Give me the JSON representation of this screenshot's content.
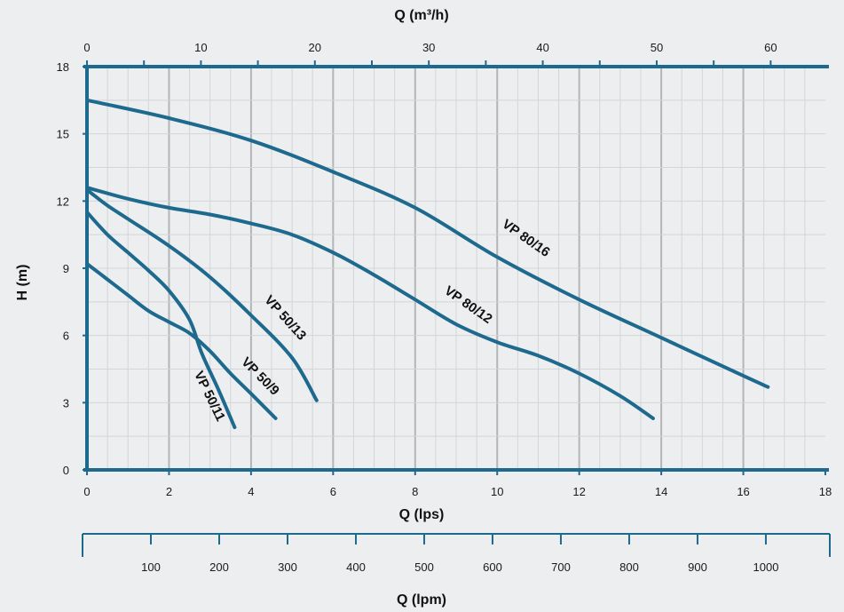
{
  "chart_data": {
    "type": "line",
    "title": "",
    "xlabel": "Q (lps)",
    "ylabel": "H (m)",
    "xlim": [
      0,
      18
    ],
    "ylim": [
      0,
      18
    ],
    "x_ticks": [
      0,
      2,
      4,
      6,
      8,
      10,
      12,
      14,
      16,
      18
    ],
    "y_ticks": [
      0,
      3,
      6,
      9,
      12,
      15,
      18
    ],
    "top_axis": {
      "label": "Q (m³/h)",
      "ticks": [
        0,
        10,
        20,
        30,
        40,
        50,
        60
      ],
      "minor_ticks": [
        5,
        15,
        25,
        35,
        45,
        55
      ],
      "lps_per_unit": 0.277778
    },
    "bottom_axis": {
      "label": "Q (lpm)",
      "ticks": [
        100,
        200,
        300,
        400,
        500,
        600,
        700,
        800,
        900,
        1000
      ],
      "lps_per_unit": 0.0166667
    },
    "grid": true,
    "line_color": "#1e6a8e",
    "axis_color": "#1e6a8e",
    "series": [
      {
        "name": "VP 80/16",
        "points": [
          [
            0,
            16.5
          ],
          [
            2,
            15.7
          ],
          [
            4,
            14.7
          ],
          [
            6,
            13.3
          ],
          [
            8,
            11.7
          ],
          [
            10,
            9.5
          ],
          [
            12,
            7.6
          ],
          [
            14,
            5.9
          ],
          [
            16,
            4.2
          ],
          [
            16.6,
            3.7
          ]
        ]
      },
      {
        "name": "VP 80/12",
        "points": [
          [
            0,
            12.6
          ],
          [
            1,
            12.1
          ],
          [
            2,
            11.7
          ],
          [
            3,
            11.4
          ],
          [
            4,
            11.0
          ],
          [
            5,
            10.5
          ],
          [
            6,
            9.7
          ],
          [
            7,
            8.7
          ],
          [
            8,
            7.6
          ],
          [
            9,
            6.5
          ],
          [
            10,
            5.7
          ],
          [
            11,
            5.1
          ],
          [
            12,
            4.3
          ],
          [
            13,
            3.3
          ],
          [
            13.8,
            2.3
          ]
        ]
      },
      {
        "name": "VP 50/13",
        "points": [
          [
            0,
            12.5
          ],
          [
            0.5,
            11.8
          ],
          [
            1,
            11.2
          ],
          [
            2,
            10.0
          ],
          [
            3,
            8.6
          ],
          [
            4,
            6.9
          ],
          [
            5,
            5.0
          ],
          [
            5.6,
            3.1
          ]
        ]
      },
      {
        "name": "VP 50/9",
        "points": [
          [
            0,
            9.2
          ],
          [
            0.5,
            8.5
          ],
          [
            1,
            7.8
          ],
          [
            1.5,
            7.1
          ],
          [
            2,
            6.6
          ],
          [
            2.5,
            6.1
          ],
          [
            3,
            5.3
          ],
          [
            3.5,
            4.3
          ],
          [
            4,
            3.4
          ],
          [
            4.6,
            2.3
          ]
        ]
      },
      {
        "name": "VP 50/11",
        "points": [
          [
            0,
            11.5
          ],
          [
            0.5,
            10.5
          ],
          [
            1,
            9.7
          ],
          [
            1.5,
            8.9
          ],
          [
            2,
            8.0
          ],
          [
            2.5,
            6.7
          ],
          [
            2.8,
            5.2
          ],
          [
            3.2,
            3.6
          ],
          [
            3.6,
            1.9
          ]
        ]
      }
    ]
  }
}
